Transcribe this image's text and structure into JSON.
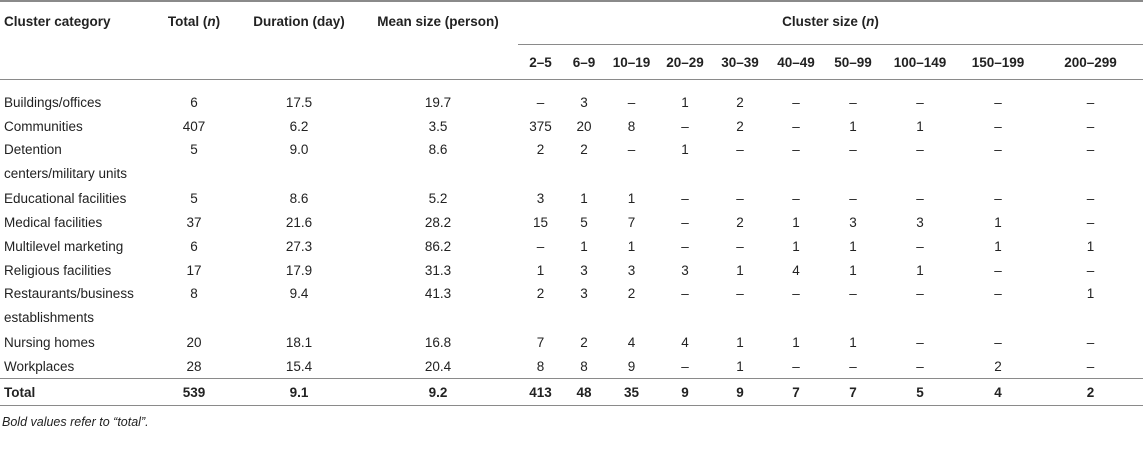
{
  "header": {
    "cluster_category": "Cluster category",
    "total": "Total",
    "total_n": "n",
    "duration": "Duration (day)",
    "mean_size": "Mean size (person)",
    "cluster_size": "Cluster size",
    "cluster_size_n": "n",
    "ranges": [
      "2–5",
      "6–9",
      "10–19",
      "20–29",
      "30–39",
      "40–49",
      "50–99",
      "100–149",
      "150–199",
      "200–299"
    ]
  },
  "rows": [
    {
      "category": "Buildings/offices",
      "total": "6",
      "duration": "17.5",
      "mean": "19.7",
      "sizes": [
        "–",
        "3",
        "–",
        "1",
        "2",
        "–",
        "–",
        "–",
        "–",
        "–"
      ]
    },
    {
      "category": "Communities",
      "total": "407",
      "duration": "6.2",
      "mean": "3.5",
      "sizes": [
        "375",
        "20",
        "8",
        "–",
        "2",
        "–",
        "1",
        "1",
        "–",
        "–"
      ]
    },
    {
      "category": "Detention centers/military units",
      "total": "5",
      "duration": "9.0",
      "mean": "8.6",
      "sizes": [
        "2",
        "2",
        "–",
        "1",
        "–",
        "–",
        "–",
        "–",
        "–",
        "–"
      ]
    },
    {
      "category": "Educational facilities",
      "total": "5",
      "duration": "8.6",
      "mean": "5.2",
      "sizes": [
        "3",
        "1",
        "1",
        "–",
        "–",
        "–",
        "–",
        "–",
        "–",
        "–"
      ]
    },
    {
      "category": "Medical facilities",
      "total": "37",
      "duration": "21.6",
      "mean": "28.2",
      "sizes": [
        "15",
        "5",
        "7",
        "–",
        "2",
        "1",
        "3",
        "3",
        "1",
        "–"
      ]
    },
    {
      "category": "Multilevel marketing",
      "total": "6",
      "duration": "27.3",
      "mean": "86.2",
      "sizes": [
        "–",
        "1",
        "1",
        "–",
        "–",
        "1",
        "1",
        "–",
        "1",
        "1"
      ]
    },
    {
      "category": "Religious facilities",
      "total": "17",
      "duration": "17.9",
      "mean": "31.3",
      "sizes": [
        "1",
        "3",
        "3",
        "3",
        "1",
        "4",
        "1",
        "1",
        "–",
        "–"
      ]
    },
    {
      "category": "Restaurants/business establishments",
      "total": "8",
      "duration": "9.4",
      "mean": "41.3",
      "sizes": [
        "2",
        "3",
        "2",
        "–",
        "–",
        "–",
        "–",
        "–",
        "–",
        "1"
      ]
    },
    {
      "category": "Nursing homes",
      "total": "20",
      "duration": "18.1",
      "mean": "16.8",
      "sizes": [
        "7",
        "2",
        "4",
        "4",
        "1",
        "1",
        "1",
        "–",
        "–",
        "–"
      ]
    },
    {
      "category": "Workplaces",
      "total": "28",
      "duration": "15.4",
      "mean": "20.4",
      "sizes": [
        "8",
        "8",
        "9",
        "–",
        "1",
        "–",
        "–",
        "–",
        "2",
        "–"
      ]
    }
  ],
  "total_row": {
    "category": "Total",
    "total": "539",
    "duration": "9.1",
    "mean": "9.2",
    "sizes": [
      "413",
      "48",
      "35",
      "9",
      "9",
      "7",
      "7",
      "5",
      "4",
      "2"
    ]
  },
  "note": "Bold values refer to “total”."
}
